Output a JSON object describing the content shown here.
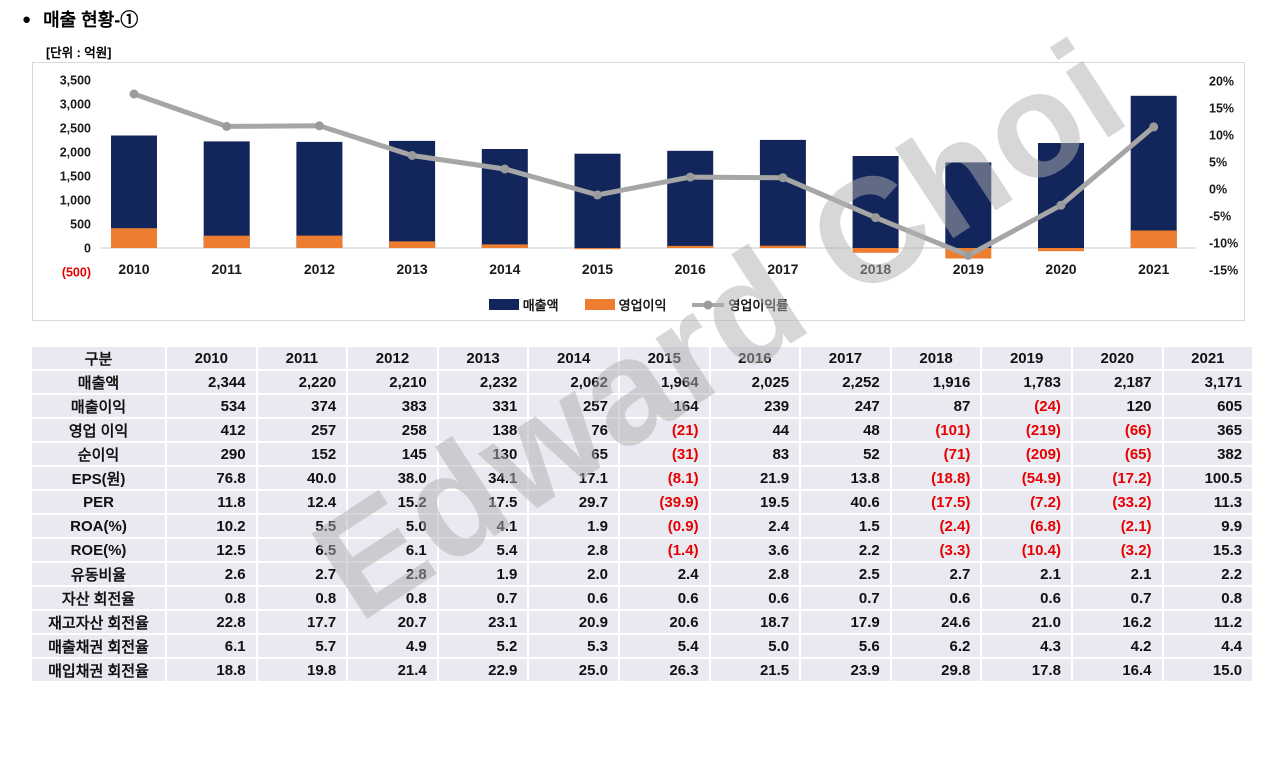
{
  "page": {
    "title": "매출 현황-①",
    "bullet": "●",
    "unit_label": "[단위 : 억원]",
    "watermark": "Edward Choi"
  },
  "colors": {
    "revenue_bar": "#13265B",
    "op_income_bar": "#ED7D31",
    "margin_line": "#A6A6A6",
    "marker": "#9B9B9B",
    "negative_text": "#E60000",
    "axis_text": "#1a1a1a",
    "gridline": "#C9C9C9",
    "table_cell_bg": "#E9E9F1"
  },
  "chart_data": {
    "type": "combo",
    "title": "",
    "categories": [
      "2010",
      "2011",
      "2012",
      "2013",
      "2014",
      "2015",
      "2016",
      "2017",
      "2018",
      "2019",
      "2020",
      "2021"
    ],
    "series": [
      {
        "name": "매출액",
        "type": "bar",
        "axis": "left",
        "color": "#13265B",
        "values": [
          2344,
          2220,
          2210,
          2232,
          2062,
          1964,
          2025,
          2252,
          1916,
          1783,
          2187,
          3171
        ]
      },
      {
        "name": "영업이익",
        "type": "bar",
        "axis": "left",
        "color": "#ED7D31",
        "values": [
          412,
          257,
          258,
          138,
          76,
          -21,
          44,
          48,
          -101,
          -219,
          -66,
          365
        ]
      },
      {
        "name": "영업이익률",
        "type": "line",
        "axis": "right",
        "color": "#A6A6A6",
        "values": [
          17.6,
          11.6,
          11.7,
          6.2,
          3.7,
          -1.1,
          2.2,
          2.1,
          -5.3,
          -12.3,
          -3.0,
          11.5
        ]
      }
    ],
    "left_axis": {
      "min": -500,
      "max": 3500,
      "step": 500
    },
    "right_axis": {
      "min": -15,
      "max": 20,
      "step": 5,
      "suffix": "%"
    },
    "legend_position": "bottom",
    "grid": "zero-line-only"
  },
  "table": {
    "columns": [
      "구분",
      "2010",
      "2011",
      "2012",
      "2013",
      "2014",
      "2015",
      "2016",
      "2017",
      "2018",
      "2019",
      "2020",
      "2021"
    ],
    "rows": [
      {
        "label": "매출액",
        "values": [
          "2,344",
          "2,220",
          "2,210",
          "2,232",
          "2,062",
          "1,964",
          "2,025",
          "2,252",
          "1,916",
          "1,783",
          "2,187",
          "3,171"
        ]
      },
      {
        "label": "매출이익",
        "values": [
          "534",
          "374",
          "383",
          "331",
          "257",
          "164",
          "239",
          "247",
          "87",
          "(24)",
          "120",
          "605"
        ]
      },
      {
        "label": "영업 이익",
        "values": [
          "412",
          "257",
          "258",
          "138",
          "76",
          "(21)",
          "44",
          "48",
          "(101)",
          "(219)",
          "(66)",
          "365"
        ]
      },
      {
        "label": "순이익",
        "values": [
          "290",
          "152",
          "145",
          "130",
          "65",
          "(31)",
          "83",
          "52",
          "(71)",
          "(209)",
          "(65)",
          "382"
        ]
      },
      {
        "label": "EPS(원)",
        "values": [
          "76.8",
          "40.0",
          "38.0",
          "34.1",
          "17.1",
          "(8.1)",
          "21.9",
          "13.8",
          "(18.8)",
          "(54.9)",
          "(17.2)",
          "100.5"
        ]
      },
      {
        "label": "PER",
        "values": [
          "11.8",
          "12.4",
          "15.2",
          "17.5",
          "29.7",
          "(39.9)",
          "19.5",
          "40.6",
          "(17.5)",
          "(7.2)",
          "(33.2)",
          "11.3"
        ]
      },
      {
        "label": "ROA(%)",
        "values": [
          "10.2",
          "5.5",
          "5.0",
          "4.1",
          "1.9",
          "(0.9)",
          "2.4",
          "1.5",
          "(2.4)",
          "(6.8)",
          "(2.1)",
          "9.9"
        ]
      },
      {
        "label": "ROE(%)",
        "values": [
          "12.5",
          "6.5",
          "6.1",
          "5.4",
          "2.8",
          "(1.4)",
          "3.6",
          "2.2",
          "(3.3)",
          "(10.4)",
          "(3.2)",
          "15.3"
        ]
      },
      {
        "label": "유동비율",
        "values": [
          "2.6",
          "2.7",
          "2.8",
          "1.9",
          "2.0",
          "2.4",
          "2.8",
          "2.5",
          "2.7",
          "2.1",
          "2.1",
          "2.2"
        ]
      },
      {
        "label": "자산 회전율",
        "values": [
          "0.8",
          "0.8",
          "0.8",
          "0.7",
          "0.6",
          "0.6",
          "0.6",
          "0.7",
          "0.6",
          "0.6",
          "0.7",
          "0.8"
        ]
      },
      {
        "label": "재고자산 회전율",
        "values": [
          "22.8",
          "17.7",
          "20.7",
          "23.1",
          "20.9",
          "20.6",
          "18.7",
          "17.9",
          "24.6",
          "21.0",
          "16.2",
          "11.2"
        ]
      },
      {
        "label": "매출채권 회전율",
        "values": [
          "6.1",
          "5.7",
          "4.9",
          "5.2",
          "5.3",
          "5.4",
          "5.0",
          "5.6",
          "6.2",
          "4.3",
          "4.2",
          "4.4"
        ]
      },
      {
        "label": "매입채권 회전율",
        "values": [
          "18.8",
          "19.8",
          "21.4",
          "22.9",
          "25.0",
          "26.3",
          "21.5",
          "23.9",
          "29.8",
          "17.8",
          "16.4",
          "15.0"
        ]
      }
    ]
  }
}
